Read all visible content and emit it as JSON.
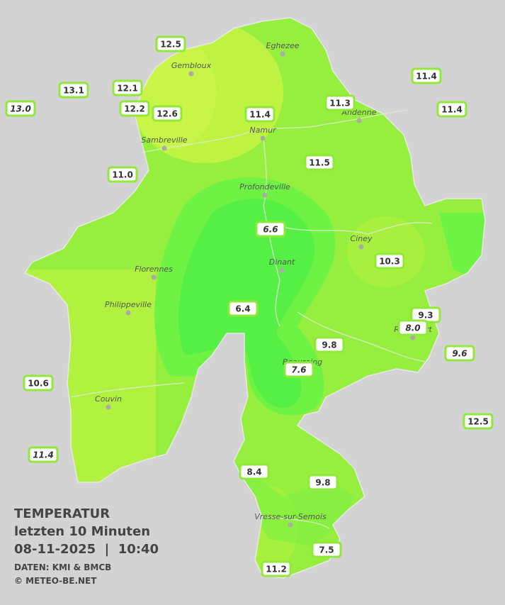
{
  "legend": {
    "title": "TEMPERATUR",
    "subtitle": "letzten 10 Minuten",
    "timestamp": "08-11-2025  |  10:40",
    "source": "DATEN: KMI & BMCB",
    "credit": "© METEO-BE.NET"
  },
  "cities": [
    "Eghezee",
    "Gembloux",
    "Andenne",
    "Namur",
    "Sambreville",
    "Profondeville",
    "Ciney",
    "Dinant",
    "Florennes",
    "Philippeville",
    "Rochefort",
    "Beauraing",
    "Couvin",
    "Vresse-sur-Semois"
  ],
  "stations": [
    {
      "label": "12.5",
      "italic": false
    },
    {
      "label": "13.1",
      "italic": false
    },
    {
      "label": "12.1",
      "italic": false
    },
    {
      "label": "13.0",
      "italic": true
    },
    {
      "label": "12.2",
      "italic": false
    },
    {
      "label": "12.6",
      "italic": false
    },
    {
      "label": "11.4",
      "italic": false
    },
    {
      "label": "11.3",
      "italic": false
    },
    {
      "label": "11.4",
      "italic": false
    },
    {
      "label": "11.4",
      "italic": false
    },
    {
      "label": "11.0",
      "italic": false
    },
    {
      "label": "11.5",
      "italic": false
    },
    {
      "label": "6.6",
      "italic": true
    },
    {
      "label": "10.3",
      "italic": false
    },
    {
      "label": "6.4",
      "italic": false
    },
    {
      "label": "9.3",
      "italic": false
    },
    {
      "label": "8.0",
      "italic": true
    },
    {
      "label": "9.8",
      "italic": false
    },
    {
      "label": "9.6",
      "italic": true
    },
    {
      "label": "7.6",
      "italic": true
    },
    {
      "label": "10.6",
      "italic": false
    },
    {
      "label": "12.5",
      "italic": false
    },
    {
      "label": "11.4",
      "italic": true
    },
    {
      "label": "8.4",
      "italic": false
    },
    {
      "label": "9.8",
      "italic": false
    },
    {
      "label": "7.5",
      "italic": false
    },
    {
      "label": "11.2",
      "italic": false
    }
  ]
}
